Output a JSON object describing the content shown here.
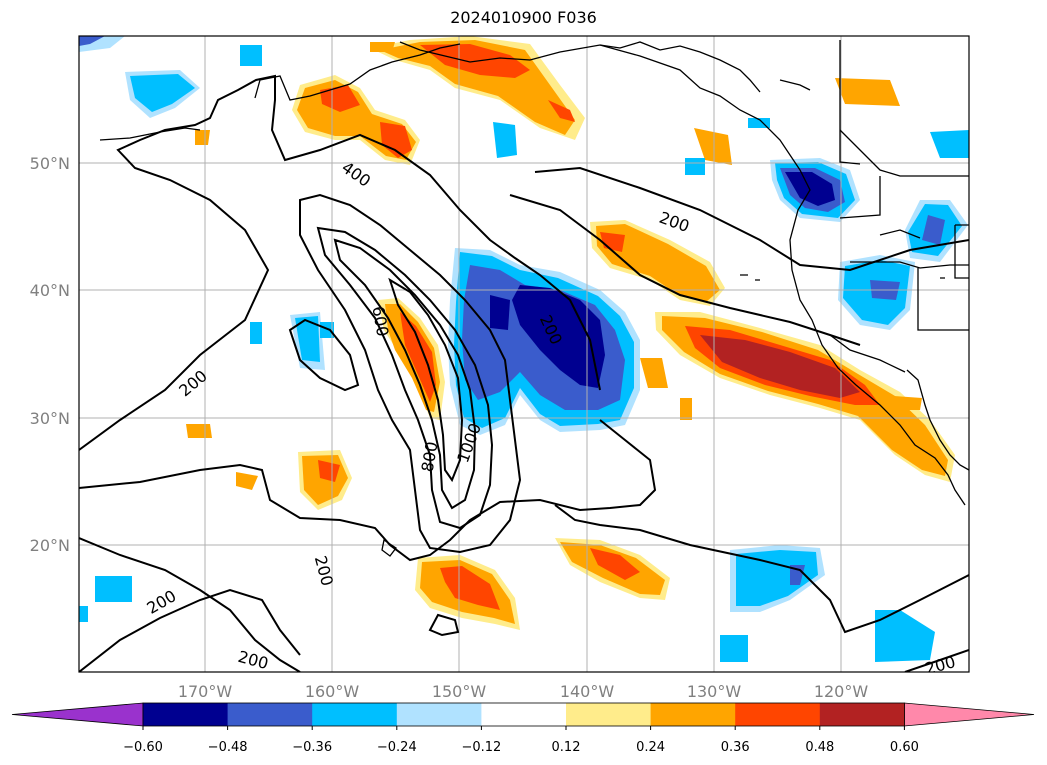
{
  "title": "2024010900 F036",
  "map": {
    "lon_labels": [
      "170°W",
      "160°W",
      "150°W",
      "140°W",
      "130°W",
      "120°W"
    ],
    "lat_labels": [
      "50°N",
      "40°N",
      "30°N",
      "20°N"
    ],
    "lon_range": [
      -180,
      -110
    ],
    "lat_range": [
      10,
      60
    ],
    "grid": true,
    "colors": {
      "coast": "#000000",
      "grid": "#b0b0b0",
      "contour": "#000000"
    }
  },
  "contour_labels": [
    "400",
    "200",
    "600",
    "200",
    "800",
    "1000",
    "200",
    "200",
    "200",
    "200",
    "200"
  ],
  "colorbar": {
    "ticks": [
      "−0.60",
      "−0.48",
      "−0.36",
      "−0.24",
      "−0.12",
      "0.12",
      "0.24",
      "0.36",
      "0.48",
      "0.60"
    ],
    "levels": [
      -0.6,
      -0.48,
      -0.36,
      -0.24,
      -0.12,
      0.12,
      0.24,
      0.36,
      0.48,
      0.6
    ],
    "under_color": "#9a32cd",
    "over_color": "#ff88aa",
    "colors": [
      "#000090",
      "#3a5ccc",
      "#00bfff",
      "#b0e2ff",
      "#ffffff",
      "#ffec8b",
      "#ffa500",
      "#ff4500",
      "#b22222"
    ],
    "extend": "both"
  }
}
